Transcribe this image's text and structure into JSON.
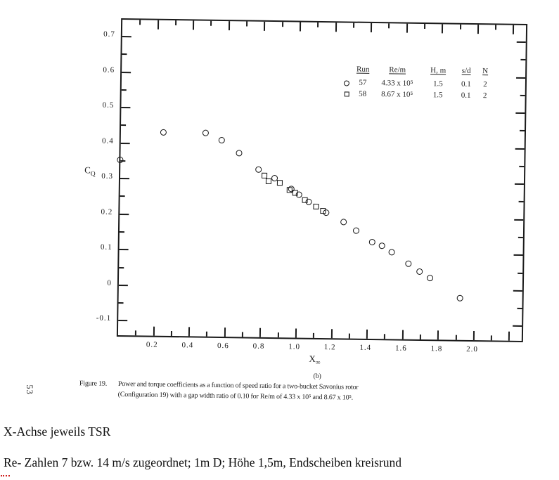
{
  "figure": {
    "part_label": "(b)",
    "caption": {
      "prefix": "Figure 19.",
      "line1": "Power and torque coefficients as a function of speed ratio for a two-bucket Savonius rotor",
      "line2": "(Configuration 19) with a gap width ratio of 0.10 for Re/m of 4.33 x 10⁵ and 8.67 x 10⁵."
    },
    "page_number": "53"
  },
  "axis": {
    "y_title_main": "C",
    "y_title_sub": "Q",
    "x_title_main": "X",
    "x_title_sub": "∞"
  },
  "notes": {
    "line1": "X-Achse jeweils TSR",
    "line2": "Re- Zahlen 7 bzw. 14 m/s zugeordnet; 1m D; Höhe 1,5m, Endscheiben kreisrund"
  },
  "chart_data": {
    "type": "scatter",
    "title": "",
    "xlabel": "X∞ (tip speed ratio, TSR)",
    "ylabel": "CQ (torque coefficient)",
    "xlim": [
      0,
      2.285
    ],
    "ylim": [
      -0.149,
      0.748
    ],
    "grid": false,
    "legend_position": "top-right",
    "x_ticks_major": [
      0.2,
      0.4,
      0.6,
      0.8,
      1.0,
      1.2,
      1.4,
      1.6,
      1.8,
      2.0,
      2.2
    ],
    "x_tick_labels": [
      "0.2",
      "0.4",
      "0.6",
      "0.8",
      "1.0",
      "1.2",
      "1.4",
      "1.6",
      "1.8",
      "2.0"
    ],
    "x_ticks_minor": [
      0.1,
      0.3,
      0.5,
      0.7,
      0.9,
      1.1,
      1.3,
      1.5,
      1.7,
      1.9,
      2.1
    ],
    "y_ticks_major": [
      0.7,
      0.6,
      0.5,
      0.4,
      0.3,
      0.2,
      0.1,
      0.0,
      -0.1
    ],
    "y_tick_labels": [
      "0.7",
      "0.6",
      "0.5",
      "0.4",
      "0.3",
      "0.2",
      "0.1",
      "0",
      "-0.1"
    ],
    "y_ticks_minor": [
      0.65,
      0.55,
      0.45,
      0.35,
      0.25,
      0.15,
      0.05,
      -0.05
    ],
    "legend": {
      "headers": [
        "Run",
        "Re/m",
        "H, m",
        "s/d",
        "N"
      ],
      "rows": [
        {
          "marker": "circle",
          "run": "57",
          "re_m": "4.33 x 10⁵",
          "h_m": "1.5",
          "s_d": "0.1",
          "n": "2"
        },
        {
          "marker": "square",
          "run": "58",
          "re_m": "8.67 x 10⁵",
          "h_m": "1.5",
          "s_d": "0.1",
          "n": "2"
        }
      ]
    },
    "series": [
      {
        "name": "Run 57",
        "marker": "circle",
        "points": [
          [
            0.0,
            0.35
          ],
          [
            0.245,
            0.43
          ],
          [
            0.48,
            0.43
          ],
          [
            0.57,
            0.41
          ],
          [
            0.67,
            0.375
          ],
          [
            0.78,
            0.33
          ],
          [
            0.87,
            0.305
          ],
          [
            0.965,
            0.275
          ],
          [
            1.01,
            0.26
          ],
          [
            1.065,
            0.24
          ],
          [
            1.165,
            0.21
          ],
          [
            1.265,
            0.185
          ],
          [
            1.335,
            0.16
          ],
          [
            1.425,
            0.13
          ],
          [
            1.48,
            0.12
          ],
          [
            1.535,
            0.102
          ],
          [
            1.63,
            0.07
          ],
          [
            1.695,
            0.048
          ],
          [
            1.755,
            0.03
          ],
          [
            1.925,
            -0.025
          ]
        ]
      },
      {
        "name": "Run 58",
        "marker": "square",
        "points": [
          [
            0.815,
            0.312
          ],
          [
            0.84,
            0.297
          ],
          [
            0.9,
            0.293
          ],
          [
            0.955,
            0.272
          ],
          [
            0.99,
            0.264
          ],
          [
            1.045,
            0.245
          ],
          [
            1.105,
            0.227
          ],
          [
            1.145,
            0.215
          ]
        ]
      }
    ]
  }
}
